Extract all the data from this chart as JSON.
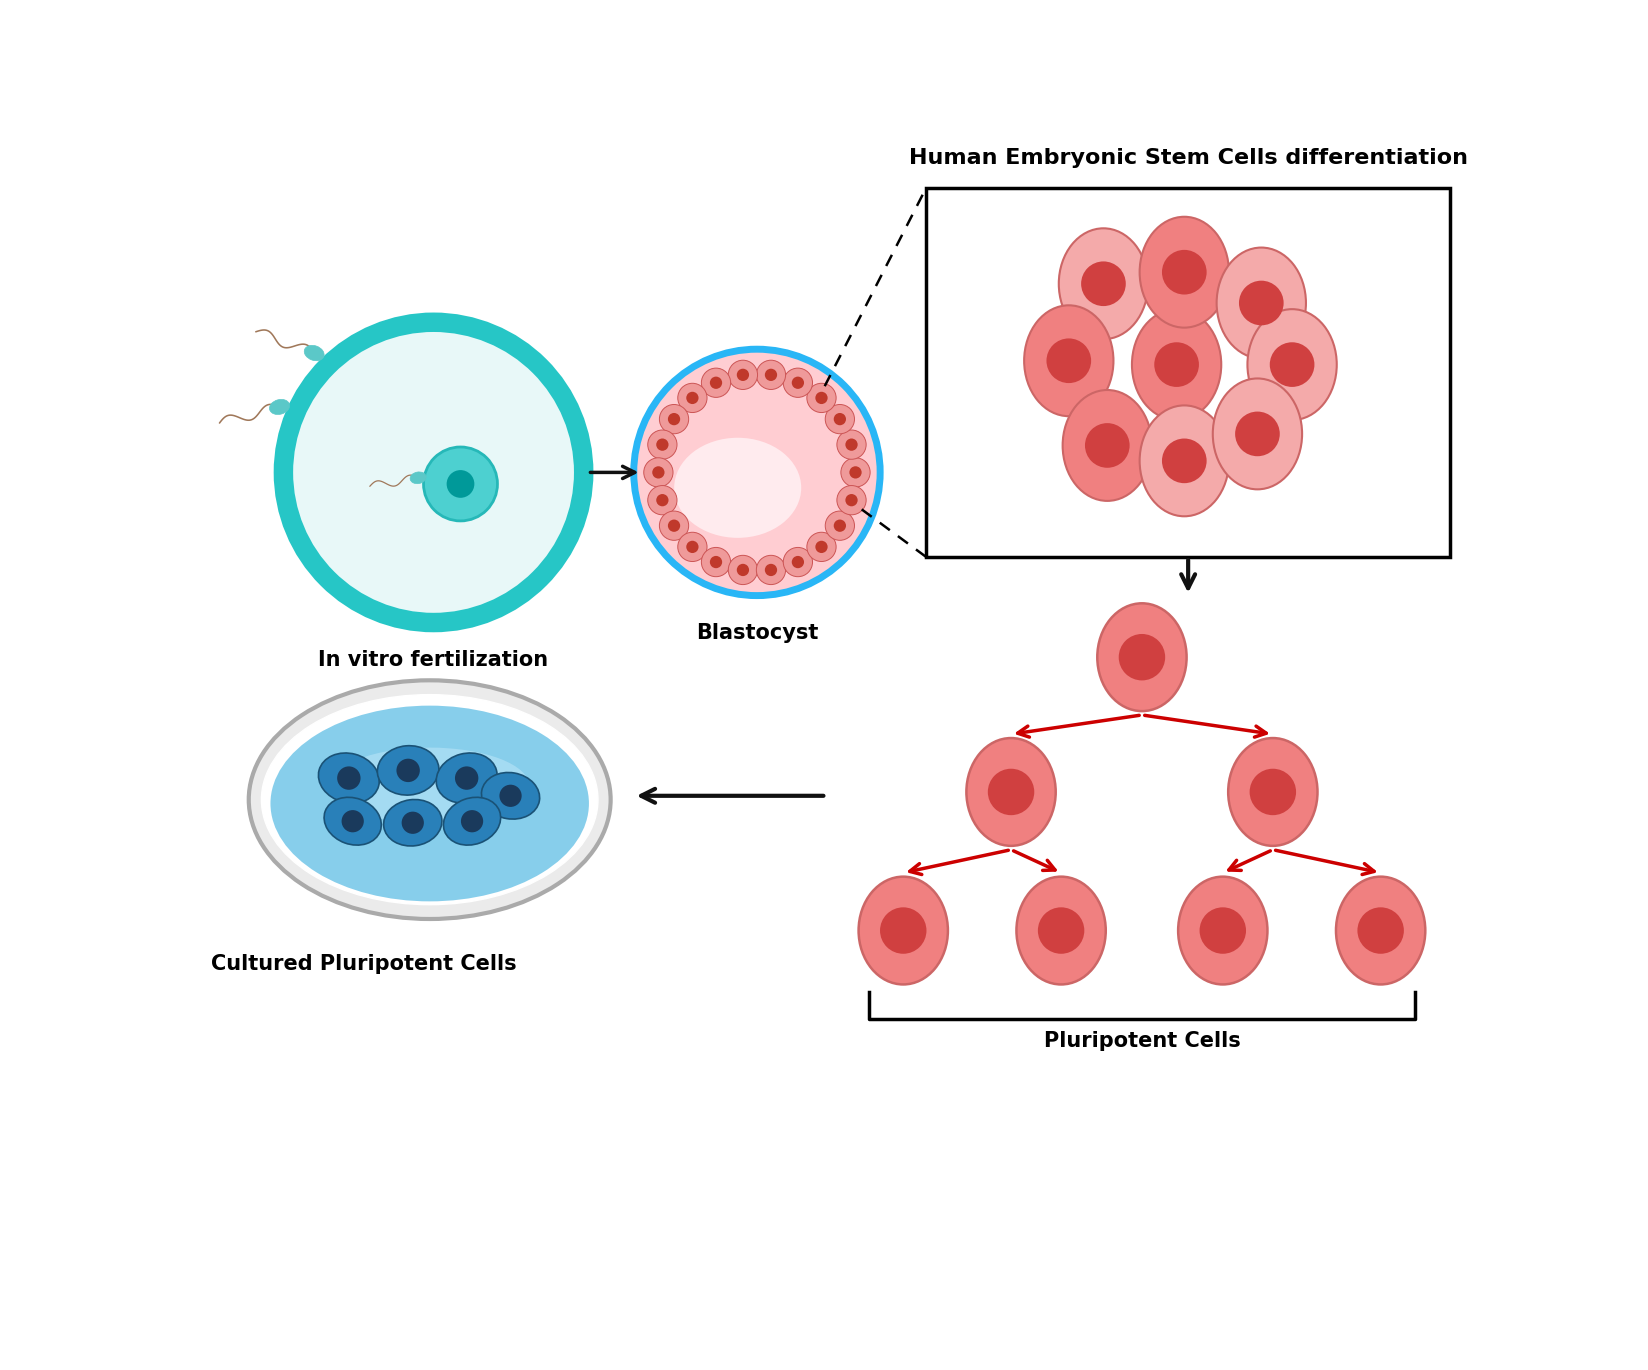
{
  "title": "Human Embryonic Stem Cells differentiation",
  "label_ivf": "In vitro fertilization",
  "label_blastocyst": "Blastocyst",
  "label_cultured": "Cultured Pluripotent Cells",
  "label_pluripotent": "Pluripotent Cells",
  "bg_color": "#ffffff",
  "cell_outer_color": "#F08080",
  "cell_inner_color": "#E05050",
  "cell_nucleus_color": "#D04040",
  "egg_outer_color": "#26C6C6",
  "egg_fill_color": "#E8F8F8",
  "blasto_outer_color": "#29B6F6",
  "blasto_fill_color": "#FFCDD2",
  "blasto_inner_color": "#FFE4E8",
  "red_arrow_color": "#CC0000",
  "black_arrow_color": "#111111",
  "sperm_color": "#A0785A",
  "sperm_head_color": "#5BC8C8",
  "petri_rim_color": "#CCCCCC",
  "petri_liquid_color": "#87CEEB",
  "petri_cell_color": "#1565C0",
  "petri_cell_border": "#0D47A1",
  "petri_nucleus_color": "#0D47A1"
}
